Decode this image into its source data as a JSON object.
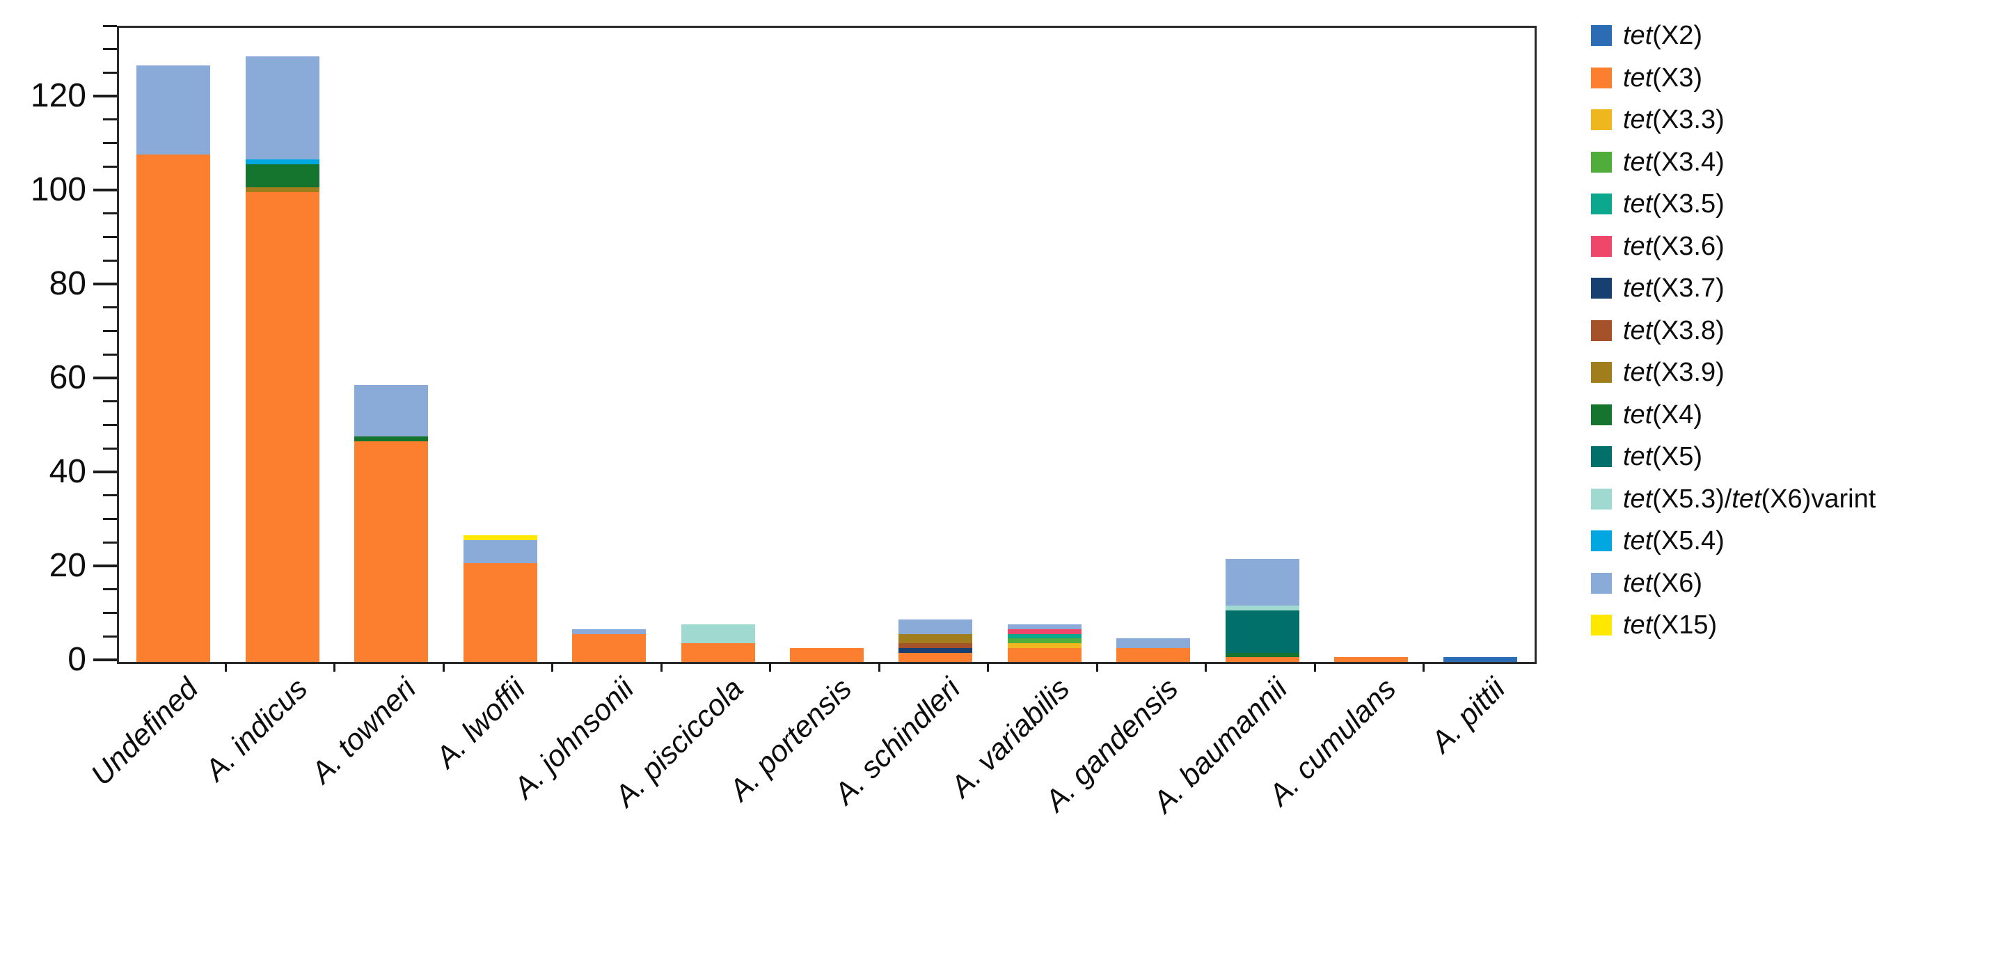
{
  "figure": {
    "kind": "stacked bar chart of tet(X) variants per Acinetobacter species",
    "background_color": "#ffffff",
    "axis_color": "#1a1a1a"
  },
  "chart_data": {
    "type": "bar",
    "stacked": true,
    "title": "",
    "xlabel": "",
    "ylabel": "",
    "ylim": [
      0,
      135
    ],
    "yticks": [
      0,
      20,
      40,
      60,
      80,
      100,
      120
    ],
    "yminor_interval": 5,
    "grid": false,
    "legend_position": "right-outside",
    "categories": [
      "Undefined",
      "A. indicus",
      "A. towneri",
      "A. lwoffii",
      "A. johnsonii",
      "A. pisciccola",
      "A. portensis",
      "A. schindleri",
      "A. variabilis",
      "A. gandensis",
      "A. baumannii",
      "A. cumulans",
      "A. pittii"
    ],
    "series": [
      {
        "name": "tet(X2)",
        "color": "#2b6cb4",
        "values": [
          0,
          0,
          0,
          0,
          0,
          0,
          0,
          0,
          0,
          0,
          0,
          0,
          1
        ]
      },
      {
        "name": "tet(X3)",
        "color": "#fb7f2f",
        "values": [
          108,
          100,
          47,
          21,
          6,
          4,
          3,
          2,
          3,
          3,
          1,
          1,
          0
        ]
      },
      {
        "name": "tet(X3.3)",
        "color": "#efb71e",
        "values": [
          0,
          0,
          0,
          0,
          0,
          0,
          0,
          0,
          1,
          0,
          0,
          0,
          0
        ]
      },
      {
        "name": "tet(X3.4)",
        "color": "#50ad3a",
        "values": [
          0,
          0,
          0,
          0,
          0,
          0,
          0,
          0,
          1,
          0,
          0,
          0,
          0
        ]
      },
      {
        "name": "tet(X3.5)",
        "color": "#0ba88e",
        "values": [
          0,
          0,
          0,
          0,
          0,
          0,
          0,
          0,
          1,
          0,
          0,
          0,
          0
        ]
      },
      {
        "name": "tet(X3.6)",
        "color": "#ef476a",
        "values": [
          0,
          0,
          0,
          0,
          0,
          0,
          0,
          0,
          1,
          0,
          0,
          0,
          0
        ]
      },
      {
        "name": "tet(X3.7)",
        "color": "#173f70",
        "values": [
          0,
          0,
          0,
          0,
          0,
          0,
          0,
          1,
          0,
          0,
          0,
          0,
          0
        ]
      },
      {
        "name": "tet(X3.8)",
        "color": "#a5522a",
        "values": [
          0,
          0,
          0,
          0,
          0,
          0,
          0,
          1,
          0,
          0,
          0,
          0,
          0
        ]
      },
      {
        "name": "tet(X3.9)",
        "color": "#a07e1e",
        "values": [
          0,
          1,
          0,
          0,
          0,
          0,
          0,
          2,
          0,
          0,
          0,
          0,
          0
        ]
      },
      {
        "name": "tet(X4)",
        "color": "#15752f",
        "values": [
          0,
          5,
          1,
          0,
          0,
          0,
          0,
          0,
          0,
          0,
          1,
          0,
          0
        ]
      },
      {
        "name": "tet(X5)",
        "color": "#02706a",
        "values": [
          0,
          0,
          0,
          0,
          0,
          0,
          0,
          0,
          0,
          0,
          9,
          0,
          0
        ]
      },
      {
        "name": "tet(X5.3)/tet(X6)varint",
        "color": "#9fd9d0",
        "values": [
          0,
          0,
          0,
          0,
          0,
          4,
          0,
          0,
          0,
          0,
          1,
          0,
          0
        ]
      },
      {
        "name": "tet(X5.4)",
        "color": "#00a7e0",
        "values": [
          0,
          1,
          0,
          0,
          0,
          0,
          0,
          0,
          0,
          0,
          0,
          0,
          0
        ]
      },
      {
        "name": "tet(X6)",
        "color": "#8aaad8",
        "values": [
          19,
          22,
          11,
          5,
          1,
          0,
          0,
          3,
          1,
          2,
          10,
          0,
          0
        ]
      },
      {
        "name": "tet(X15)",
        "color": "#ffe800",
        "values": [
          0,
          0,
          0,
          1,
          0,
          0,
          0,
          0,
          0,
          0,
          0,
          0,
          0
        ]
      }
    ]
  }
}
